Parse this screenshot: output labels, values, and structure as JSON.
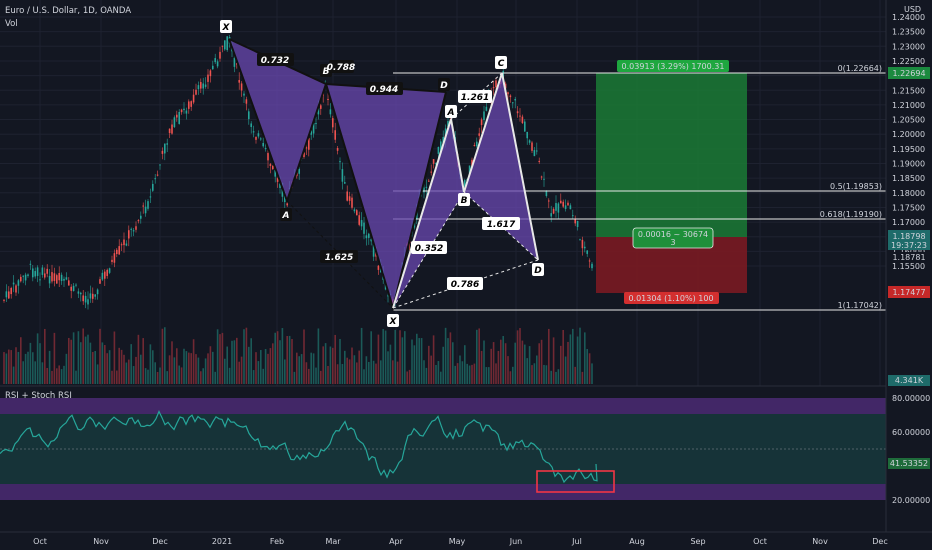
{
  "header": {
    "symbol_title": "Euro / U.S. Dollar, 1D, OANDA",
    "volume_label": "Vol",
    "currency": "USD"
  },
  "price_axis": {
    "ticks": [
      "1.24000",
      "1.23500",
      "1.23000",
      "1.22500",
      "1.22000",
      "1.21500",
      "1.21000",
      "1.20500",
      "1.20000",
      "1.19500",
      "1.19000",
      "1.18500",
      "1.18000",
      "1.17500",
      "1.17000",
      "1.16500",
      "1.16000",
      "1.15500"
    ],
    "badge_target": "1.22694",
    "badge_current_price": "1.18798",
    "badge_countdown": "19:37:23",
    "badge_last": "1.18781",
    "badge_stop": "1.17477",
    "badge_volume": "4.341K"
  },
  "fib_levels": [
    {
      "label": "0(1.22664)",
      "price": 1.22664
    },
    {
      "label": "0.5(1.19853)",
      "price": 1.19853
    },
    {
      "label": "0.618(1.19190)",
      "price": 1.1919
    },
    {
      "label": "1(1.17042)",
      "price": 1.17042
    }
  ],
  "pattern_large": {
    "points": [
      "X",
      "A",
      "B",
      "D"
    ],
    "ratios": [
      "0.732",
      "0.788",
      "0.944",
      "1.625"
    ]
  },
  "pattern_small": {
    "points": [
      "X",
      "A",
      "B",
      "C",
      "D"
    ],
    "ratios": [
      "1.261",
      "0.352",
      "1.617",
      "0.786"
    ]
  },
  "position": {
    "target_label": "0.03913 (3.29%) 1700.31",
    "stop_label": "0.01304 (1.10%) 100",
    "info_line1": "0.00016 ~ 30674",
    "info_line2": "3"
  },
  "oscillator": {
    "title": "RSI + Stoch RSI",
    "ticks": [
      "80.00000",
      "60.00000",
      "20.00000"
    ],
    "value_badge": "41.53352"
  },
  "time_axis": [
    "Oct",
    "Nov",
    "Dec",
    "2021",
    "Feb",
    "Mar",
    "Apr",
    "May",
    "Jun",
    "Jul",
    "Aug",
    "Sep",
    "Oct",
    "Nov",
    "Dec"
  ],
  "colors": {
    "background": "#131722",
    "pattern_fill": "#6a48b0",
    "target_zone": "#1b7a35",
    "stop_zone": "#7a1a22",
    "rsi_line": "#26a69a",
    "rsi_band": "#4b2a73",
    "highlight_box": "#f23645"
  }
}
